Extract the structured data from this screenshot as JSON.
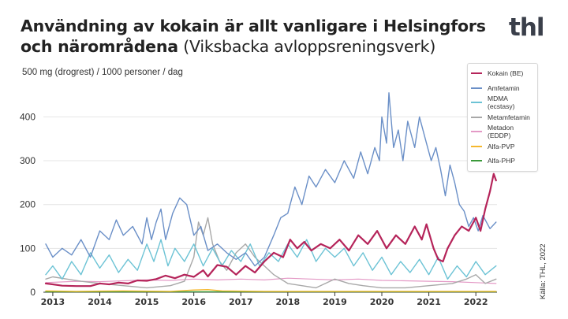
{
  "header": {
    "title_bold": "Användning av kokain är allt vanligare i Helsingfors och närområdena",
    "title_sub": "(Viksbacka avloppsreningsverk)",
    "logo": "thl",
    "source": "Källa: THL, 2022"
  },
  "chart_data": {
    "type": "line",
    "title": "Användning av kokain är allt vanligare i Helsingfors och närområdena (Viksbacka avloppsreningsverk)",
    "ylabel": "500 mg (drogrest) / 1000 personer / dag",
    "ylim": [
      0,
      460
    ],
    "yticks": [
      0,
      100,
      200,
      300,
      400
    ],
    "xlim": [
      2012.8,
      2022.45
    ],
    "xticks": [
      2013,
      2014,
      2015,
      2016,
      2017,
      2018,
      2019,
      2020,
      2021,
      2022
    ],
    "xtick_labels": [
      "2013",
      "2014",
      "2015",
      "2016",
      "2017",
      "2018",
      "2019",
      "2020",
      "2021",
      "2022"
    ],
    "grid": "horizontal",
    "legend_position": "top-right",
    "series": [
      {
        "name": "Kokain (BE)",
        "color": "#b5245a",
        "width": 2.2,
        "points": [
          [
            2012.85,
            20
          ],
          [
            2013.0,
            18
          ],
          [
            2013.2,
            15
          ],
          [
            2013.5,
            14
          ],
          [
            2013.8,
            14
          ],
          [
            2014.0,
            20
          ],
          [
            2014.2,
            18
          ],
          [
            2014.4,
            22
          ],
          [
            2014.6,
            20
          ],
          [
            2014.8,
            27
          ],
          [
            2015.0,
            26
          ],
          [
            2015.2,
            30
          ],
          [
            2015.4,
            38
          ],
          [
            2015.6,
            32
          ],
          [
            2015.8,
            40
          ],
          [
            2016.0,
            35
          ],
          [
            2016.2,
            50
          ],
          [
            2016.3,
            36
          ],
          [
            2016.5,
            62
          ],
          [
            2016.7,
            58
          ],
          [
            2016.9,
            40
          ],
          [
            2017.1,
            60
          ],
          [
            2017.3,
            45
          ],
          [
            2017.5,
            70
          ],
          [
            2017.7,
            90
          ],
          [
            2017.9,
            80
          ],
          [
            2018.05,
            120
          ],
          [
            2018.2,
            100
          ],
          [
            2018.35,
            115
          ],
          [
            2018.5,
            95
          ],
          [
            2018.7,
            110
          ],
          [
            2018.9,
            100
          ],
          [
            2019.1,
            120
          ],
          [
            2019.3,
            95
          ],
          [
            2019.5,
            130
          ],
          [
            2019.7,
            110
          ],
          [
            2019.9,
            140
          ],
          [
            2020.1,
            100
          ],
          [
            2020.3,
            130
          ],
          [
            2020.5,
            110
          ],
          [
            2020.7,
            150
          ],
          [
            2020.85,
            120
          ],
          [
            2020.95,
            155
          ],
          [
            2021.1,
            100
          ],
          [
            2021.2,
            75
          ],
          [
            2021.3,
            70
          ],
          [
            2021.4,
            100
          ],
          [
            2021.55,
            130
          ],
          [
            2021.7,
            150
          ],
          [
            2021.85,
            140
          ],
          [
            2022.0,
            170
          ],
          [
            2022.1,
            140
          ],
          [
            2022.2,
            190
          ],
          [
            2022.3,
            230
          ],
          [
            2022.38,
            270
          ],
          [
            2022.43,
            255
          ]
        ]
      },
      {
        "name": "Amfetamin",
        "color": "#6a8fc7",
        "width": 1.4,
        "points": [
          [
            2012.85,
            110
          ],
          [
            2013.0,
            80
          ],
          [
            2013.2,
            100
          ],
          [
            2013.4,
            85
          ],
          [
            2013.6,
            120
          ],
          [
            2013.8,
            80
          ],
          [
            2014.0,
            140
          ],
          [
            2014.2,
            120
          ],
          [
            2014.35,
            165
          ],
          [
            2014.5,
            130
          ],
          [
            2014.7,
            150
          ],
          [
            2014.9,
            110
          ],
          [
            2015.0,
            170
          ],
          [
            2015.1,
            120
          ],
          [
            2015.2,
            160
          ],
          [
            2015.3,
            190
          ],
          [
            2015.4,
            120
          ],
          [
            2015.55,
            180
          ],
          [
            2015.7,
            215
          ],
          [
            2015.85,
            200
          ],
          [
            2016.0,
            130
          ],
          [
            2016.15,
            150
          ],
          [
            2016.3,
            95
          ],
          [
            2016.5,
            110
          ],
          [
            2016.7,
            90
          ],
          [
            2016.9,
            75
          ],
          [
            2017.1,
            90
          ],
          [
            2017.3,
            60
          ],
          [
            2017.5,
            80
          ],
          [
            2017.7,
            130
          ],
          [
            2017.85,
            170
          ],
          [
            2018.0,
            180
          ],
          [
            2018.15,
            240
          ],
          [
            2018.3,
            200
          ],
          [
            2018.45,
            265
          ],
          [
            2018.6,
            240
          ],
          [
            2018.8,
            280
          ],
          [
            2019.0,
            250
          ],
          [
            2019.2,
            300
          ],
          [
            2019.4,
            260
          ],
          [
            2019.55,
            320
          ],
          [
            2019.7,
            270
          ],
          [
            2019.85,
            330
          ],
          [
            2019.95,
            300
          ],
          [
            2020.0,
            400
          ],
          [
            2020.1,
            340
          ],
          [
            2020.15,
            455
          ],
          [
            2020.25,
            330
          ],
          [
            2020.35,
            370
          ],
          [
            2020.45,
            300
          ],
          [
            2020.55,
            390
          ],
          [
            2020.7,
            330
          ],
          [
            2020.8,
            400
          ],
          [
            2020.95,
            340
          ],
          [
            2021.05,
            300
          ],
          [
            2021.15,
            330
          ],
          [
            2021.25,
            280
          ],
          [
            2021.35,
            220
          ],
          [
            2021.45,
            290
          ],
          [
            2021.55,
            250
          ],
          [
            2021.65,
            200
          ],
          [
            2021.75,
            185
          ],
          [
            2021.85,
            150
          ],
          [
            2021.95,
            170
          ],
          [
            2022.05,
            140
          ],
          [
            2022.15,
            175
          ],
          [
            2022.3,
            145
          ],
          [
            2022.43,
            160
          ]
        ]
      },
      {
        "name": "MDMA (ecstasy)",
        "color": "#6cc3d5",
        "width": 1.4,
        "points": [
          [
            2012.85,
            40
          ],
          [
            2013.0,
            60
          ],
          [
            2013.2,
            30
          ],
          [
            2013.4,
            70
          ],
          [
            2013.6,
            40
          ],
          [
            2013.8,
            90
          ],
          [
            2014.0,
            55
          ],
          [
            2014.2,
            85
          ],
          [
            2014.4,
            45
          ],
          [
            2014.6,
            75
          ],
          [
            2014.8,
            50
          ],
          [
            2015.0,
            110
          ],
          [
            2015.15,
            70
          ],
          [
            2015.3,
            120
          ],
          [
            2015.45,
            60
          ],
          [
            2015.6,
            100
          ],
          [
            2015.8,
            70
          ],
          [
            2016.0,
            110
          ],
          [
            2016.2,
            60
          ],
          [
            2016.4,
            100
          ],
          [
            2016.6,
            60
          ],
          [
            2016.8,
            95
          ],
          [
            2017.0,
            70
          ],
          [
            2017.2,
            110
          ],
          [
            2017.4,
            60
          ],
          [
            2017.6,
            90
          ],
          [
            2017.8,
            70
          ],
          [
            2018.0,
            110
          ],
          [
            2018.2,
            80
          ],
          [
            2018.4,
            120
          ],
          [
            2018.6,
            70
          ],
          [
            2018.8,
            100
          ],
          [
            2019.0,
            80
          ],
          [
            2019.2,
            100
          ],
          [
            2019.4,
            60
          ],
          [
            2019.6,
            90
          ],
          [
            2019.8,
            50
          ],
          [
            2020.0,
            80
          ],
          [
            2020.2,
            40
          ],
          [
            2020.4,
            70
          ],
          [
            2020.6,
            45
          ],
          [
            2020.8,
            75
          ],
          [
            2021.0,
            40
          ],
          [
            2021.2,
            80
          ],
          [
            2021.4,
            30
          ],
          [
            2021.6,
            60
          ],
          [
            2021.8,
            35
          ],
          [
            2022.0,
            70
          ],
          [
            2022.2,
            40
          ],
          [
            2022.43,
            60
          ]
        ]
      },
      {
        "name": "Metamfetamin",
        "color": "#a8a8a8",
        "width": 1.4,
        "points": [
          [
            2012.85,
            30
          ],
          [
            2013.0,
            35
          ],
          [
            2013.3,
            30
          ],
          [
            2013.6,
            25
          ],
          [
            2014.0,
            20
          ],
          [
            2014.5,
            15
          ],
          [
            2015.0,
            10
          ],
          [
            2015.5,
            15
          ],
          [
            2015.8,
            25
          ],
          [
            2016.0,
            80
          ],
          [
            2016.1,
            160
          ],
          [
            2016.2,
            130
          ],
          [
            2016.3,
            170
          ],
          [
            2016.4,
            110
          ],
          [
            2016.55,
            70
          ],
          [
            2016.7,
            50
          ],
          [
            2016.9,
            90
          ],
          [
            2017.1,
            110
          ],
          [
            2017.3,
            80
          ],
          [
            2017.5,
            60
          ],
          [
            2017.7,
            40
          ],
          [
            2018.0,
            20
          ],
          [
            2018.3,
            15
          ],
          [
            2018.6,
            10
          ],
          [
            2019.0,
            30
          ],
          [
            2019.3,
            20
          ],
          [
            2019.6,
            15
          ],
          [
            2020.0,
            10
          ],
          [
            2020.5,
            10
          ],
          [
            2021.0,
            15
          ],
          [
            2021.5,
            20
          ],
          [
            2021.8,
            30
          ],
          [
            2022.0,
            40
          ],
          [
            2022.2,
            20
          ],
          [
            2022.43,
            30
          ]
        ]
      },
      {
        "name": "Metadon (EDDP)",
        "color": "#e49ac6",
        "width": 1.2,
        "points": [
          [
            2012.85,
            22
          ],
          [
            2013.5,
            25
          ],
          [
            2014.0,
            24
          ],
          [
            2014.5,
            26
          ],
          [
            2015.0,
            28
          ],
          [
            2015.5,
            27
          ],
          [
            2016.0,
            30
          ],
          [
            2016.5,
            28
          ],
          [
            2017.0,
            30
          ],
          [
            2017.5,
            28
          ],
          [
            2018.0,
            32
          ],
          [
            2018.5,
            30
          ],
          [
            2019.0,
            28
          ],
          [
            2019.5,
            30
          ],
          [
            2020.0,
            27
          ],
          [
            2020.5,
            26
          ],
          [
            2021.0,
            25
          ],
          [
            2021.5,
            24
          ],
          [
            2022.0,
            22
          ],
          [
            2022.43,
            20
          ]
        ]
      },
      {
        "name": "Alfa-PVP",
        "color": "#f5b82e",
        "width": 1.4,
        "points": [
          [
            2012.85,
            3
          ],
          [
            2013.5,
            2
          ],
          [
            2014.5,
            3
          ],
          [
            2015.5,
            2
          ],
          [
            2016.0,
            5
          ],
          [
            2016.3,
            6
          ],
          [
            2016.6,
            3
          ],
          [
            2017.5,
            2
          ],
          [
            2018.5,
            2
          ],
          [
            2019.5,
            2
          ],
          [
            2020.5,
            2
          ],
          [
            2021.5,
            2
          ],
          [
            2022.43,
            2
          ]
        ]
      },
      {
        "name": "Alfa-PHP",
        "color": "#3a9a3a",
        "width": 1.4,
        "points": [
          [
            2012.85,
            1
          ],
          [
            2014.0,
            1
          ],
          [
            2015.0,
            1
          ],
          [
            2016.0,
            1
          ],
          [
            2017.0,
            1
          ],
          [
            2018.0,
            1
          ],
          [
            2019.0,
            1
          ],
          [
            2020.0,
            1
          ],
          [
            2021.0,
            1
          ],
          [
            2022.43,
            1
          ]
        ]
      }
    ]
  }
}
